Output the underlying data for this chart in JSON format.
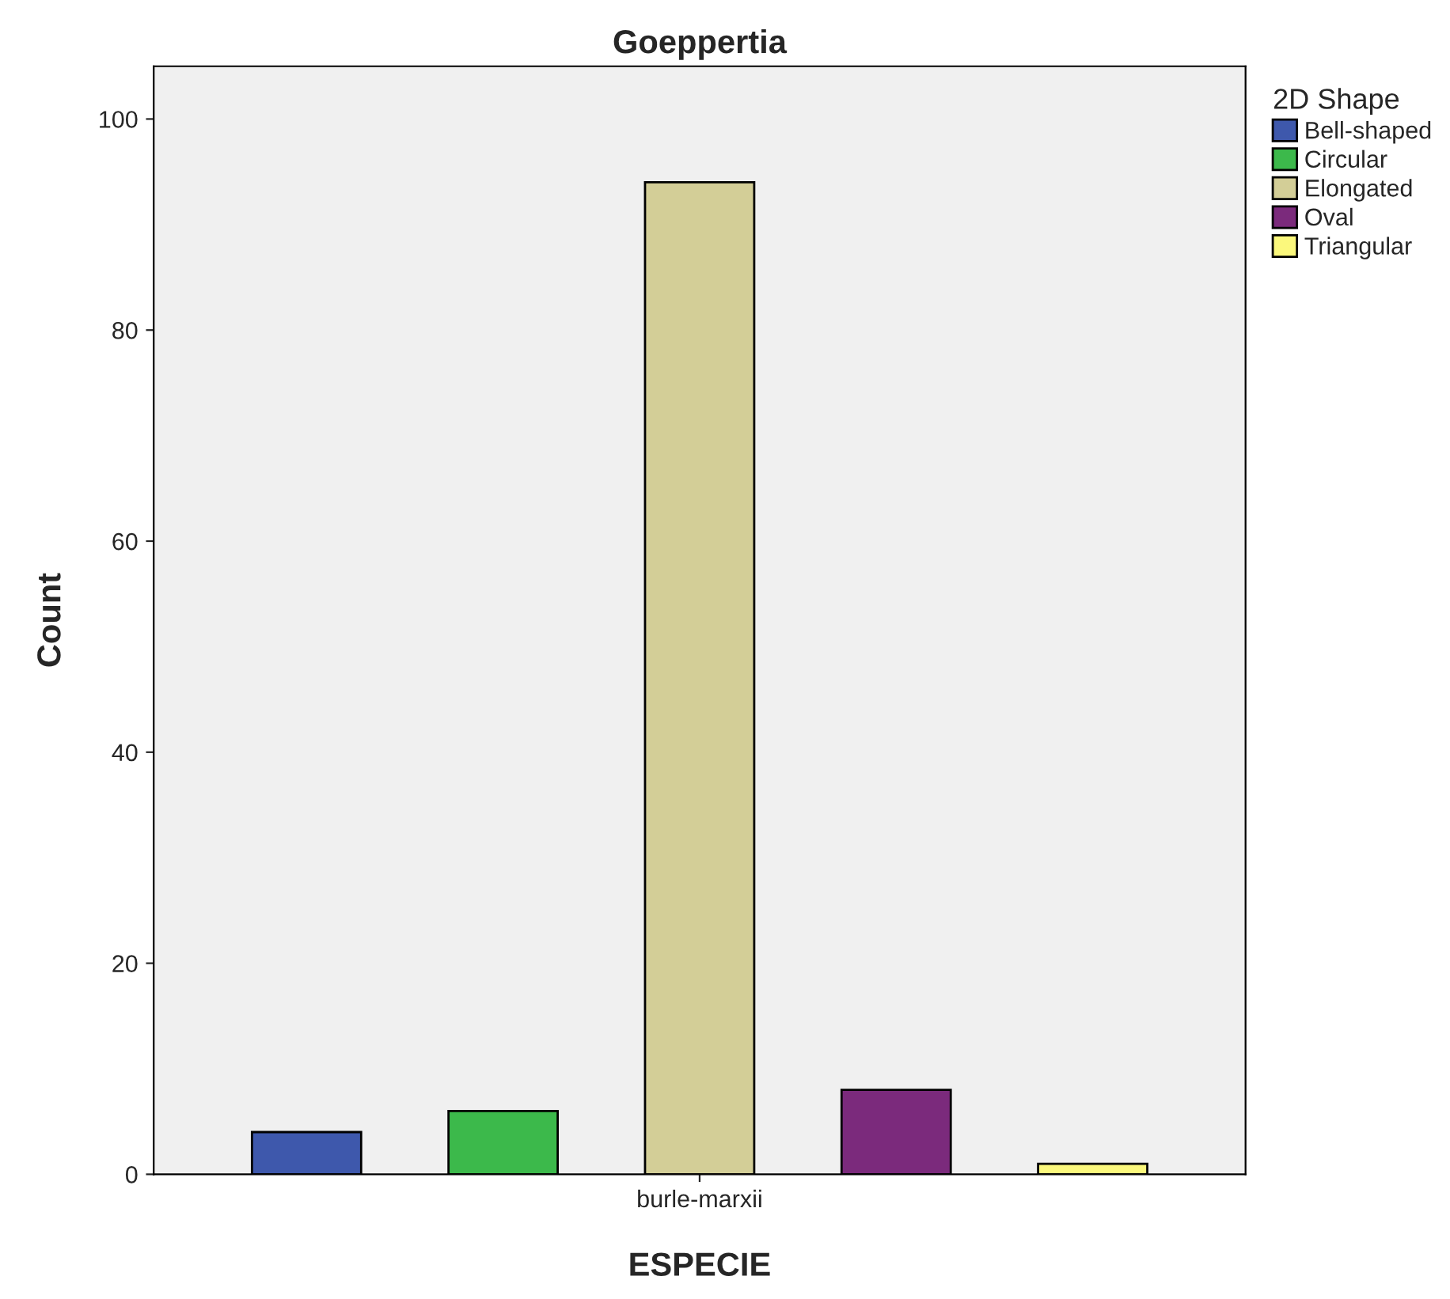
{
  "chart_data": {
    "type": "bar",
    "title": "Goeppertia",
    "xlabel": "ESPECIE",
    "ylabel": "Count",
    "legend_title": "2D Shape",
    "categories": [
      "burle-marxii"
    ],
    "series": [
      {
        "name": "Bell-shaped",
        "color": "#3e58ac",
        "values": [
          4
        ]
      },
      {
        "name": "Circular",
        "color": "#3cb94b",
        "values": [
          6
        ]
      },
      {
        "name": "Elongated",
        "color": "#d3ce97",
        "values": [
          94
        ]
      },
      {
        "name": "Oval",
        "color": "#7b2a7c",
        "values": [
          8
        ]
      },
      {
        "name": "Triangular",
        "color": "#fbf87c",
        "values": [
          1
        ]
      }
    ],
    "ylim": [
      0,
      105
    ],
    "yticks": [
      0,
      20,
      40,
      60,
      80,
      100
    ],
    "grid": false,
    "legend": "right"
  }
}
